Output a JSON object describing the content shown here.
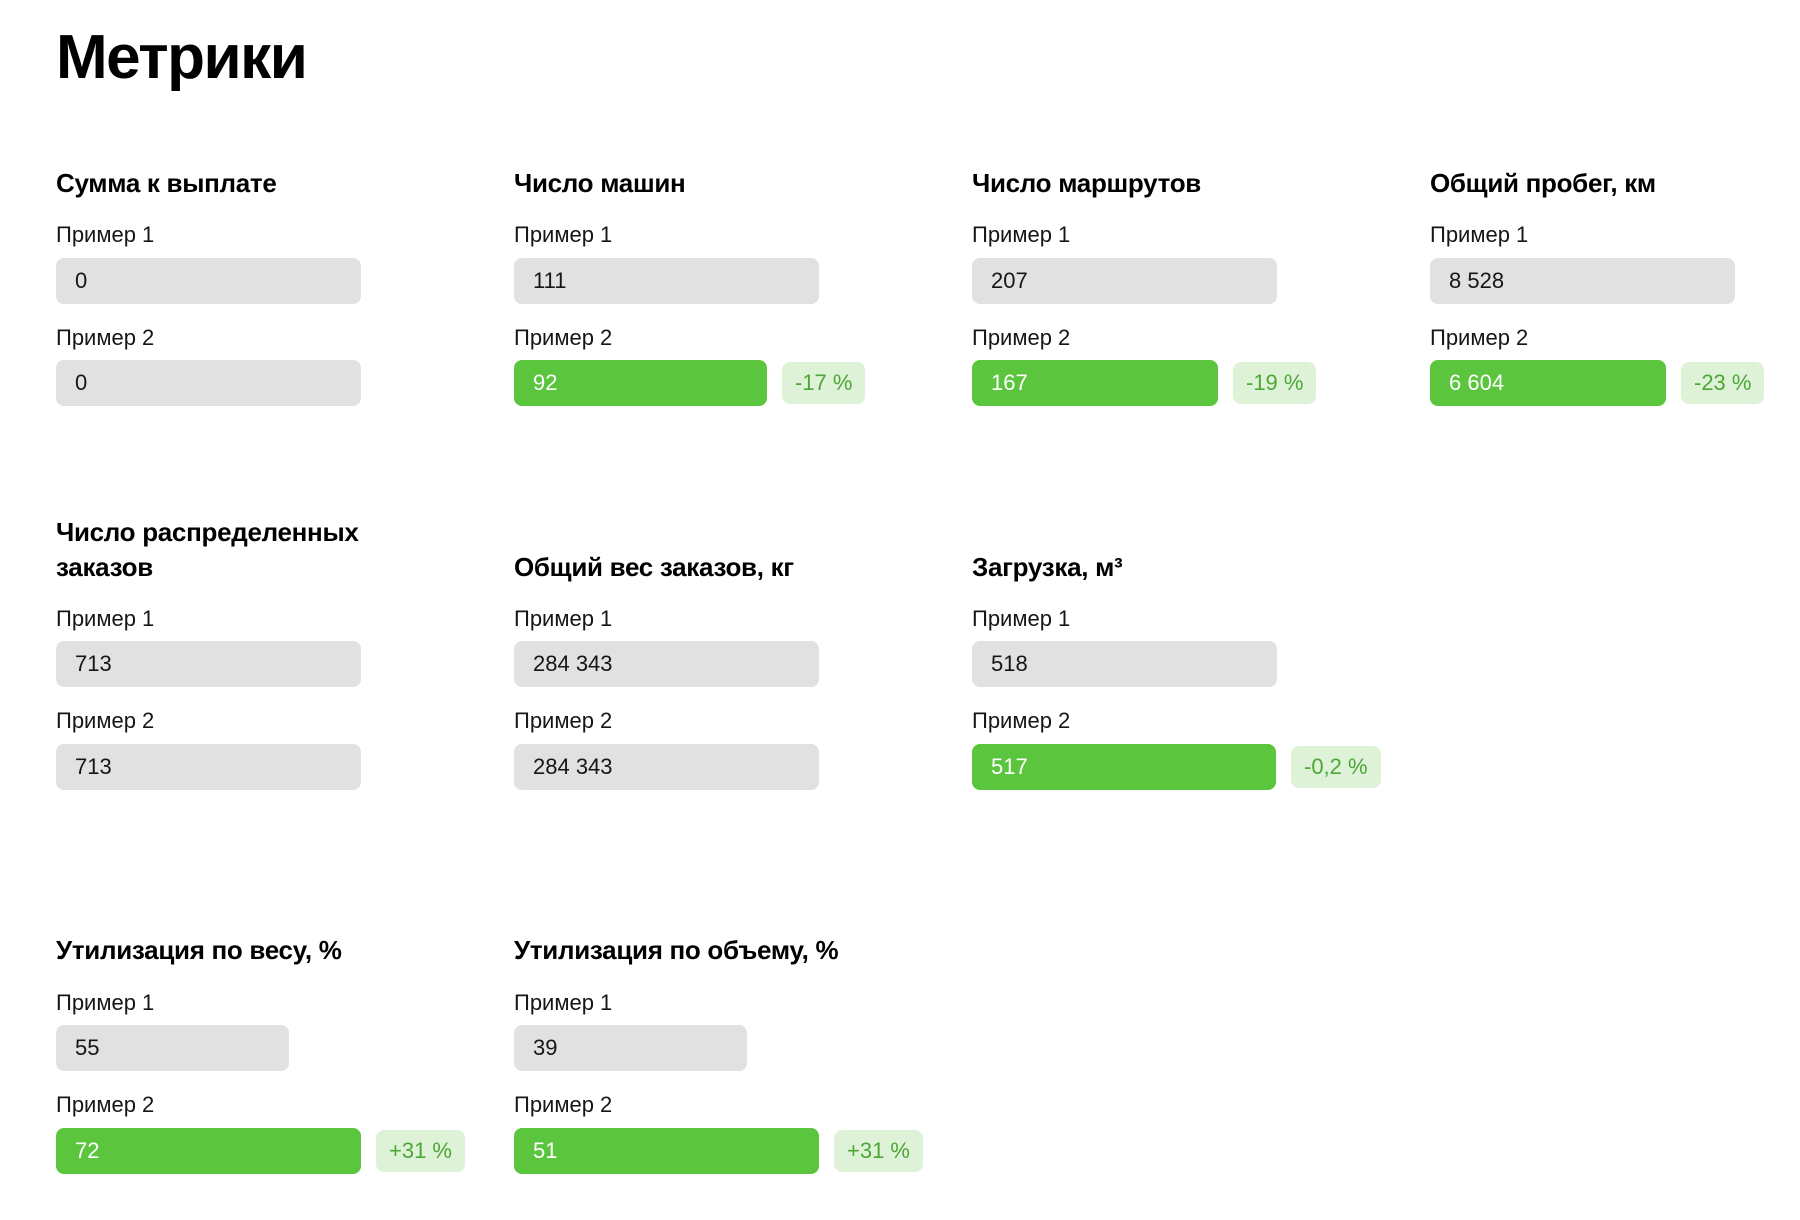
{
  "page": {
    "title": "Метрики"
  },
  "colors": {
    "green_bar": "#5AC53D",
    "green_bar_text": "#FFFFFF",
    "gray_bar": "#E1E1E1",
    "gray_bar_text": "#161616",
    "badge_bg": "#DDF2D6",
    "badge_text": "#4EA637"
  },
  "metrics": [
    {
      "title": "Сумма к выплате",
      "examples": [
        {
          "label": "Пример 1",
          "value": "0",
          "variant": "gray",
          "bar_pct": 100,
          "badge": ""
        },
        {
          "label": "Пример 2",
          "value": "0",
          "variant": "gray",
          "bar_pct": 100,
          "badge": ""
        }
      ]
    },
    {
      "title": "Число машин",
      "examples": [
        {
          "label": "Пример 1",
          "value": "111",
          "variant": "gray",
          "bar_pct": 100,
          "badge": ""
        },
        {
          "label": "Пример 2",
          "value": "92",
          "variant": "green",
          "bar_pct": 82.9,
          "badge": "-17 %"
        }
      ]
    },
    {
      "title": "Число маршрутов",
      "examples": [
        {
          "label": "Пример 1",
          "value": "207",
          "variant": "gray",
          "bar_pct": 100,
          "badge": ""
        },
        {
          "label": "Пример 2",
          "value": "167",
          "variant": "green",
          "bar_pct": 80.7,
          "badge": "-19 %"
        }
      ]
    },
    {
      "title": "Общий пробег, км",
      "examples": [
        {
          "label": "Пример 1",
          "value": "8 528",
          "variant": "gray",
          "bar_pct": 100,
          "badge": ""
        },
        {
          "label": "Пример 2",
          "value": "6 604",
          "variant": "green",
          "bar_pct": 77.4,
          "badge": "-23 %"
        }
      ]
    },
    {
      "title": "Число распределенных заказов",
      "examples": [
        {
          "label": "Пример 1",
          "value": "713",
          "variant": "gray",
          "bar_pct": 100,
          "badge": ""
        },
        {
          "label": "Пример 2",
          "value": "713",
          "variant": "gray",
          "bar_pct": 100,
          "badge": ""
        }
      ]
    },
    {
      "title": "Общий вес заказов, кг",
      "examples": [
        {
          "label": "Пример 1",
          "value": "284 343",
          "variant": "gray",
          "bar_pct": 100,
          "badge": ""
        },
        {
          "label": "Пример 2",
          "value": "284 343",
          "variant": "gray",
          "bar_pct": 100,
          "badge": ""
        }
      ]
    },
    {
      "title": "Загрузка, м³",
      "examples": [
        {
          "label": "Пример 1",
          "value": "518",
          "variant": "gray",
          "bar_pct": 100,
          "badge": ""
        },
        {
          "label": "Пример 2",
          "value": "517",
          "variant": "green",
          "bar_pct": 99.8,
          "badge": "-0,2 %"
        }
      ]
    },
    {
      "title": "Утилизация по весу, %",
      "examples": [
        {
          "label": "Пример 1",
          "value": "55",
          "variant": "gray",
          "bar_pct": 76.4,
          "badge": ""
        },
        {
          "label": "Пример 2",
          "value": "72",
          "variant": "green",
          "bar_pct": 100,
          "badge": "+31 %"
        }
      ]
    },
    {
      "title": "Утилизация по объему, %",
      "examples": [
        {
          "label": "Пример 1",
          "value": "39",
          "variant": "gray",
          "bar_pct": 76.5,
          "badge": ""
        },
        {
          "label": "Пример 2",
          "value": "51",
          "variant": "green",
          "bar_pct": 100,
          "badge": "+31 %"
        }
      ]
    }
  ]
}
